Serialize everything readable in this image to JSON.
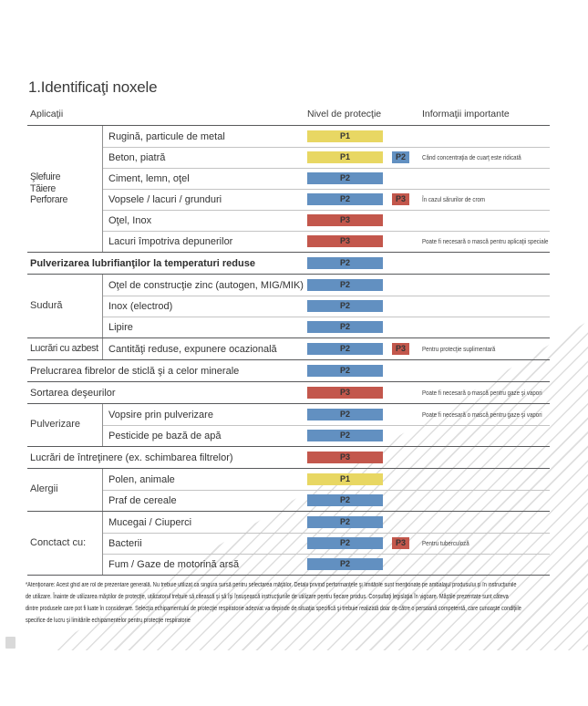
{
  "title": "1.Identificaţi noxele",
  "columns": {
    "applications": "Aplicaţii",
    "protection": "Nivel de protecţie",
    "info": "Informaţii importante"
  },
  "levels": {
    "P1": "#e8d763",
    "P2": "#6290c1",
    "P3": "#c3574c"
  },
  "sections": [
    {
      "label": "Şlefuire\nTăiere\nPerforare",
      "rows": [
        {
          "text": "Rugină, particule de metal",
          "badge": "P1"
        },
        {
          "text": "Beton, piatră",
          "badge": "P1",
          "badge2": "P2",
          "note": "Când concentraţia de cuarţ este ridicată"
        },
        {
          "text": "Ciment, lemn, oţel",
          "badge": "P2"
        },
        {
          "text": "Vopsele / lacuri / grunduri",
          "badge": "P2",
          "badge2": "P3",
          "note": "În cazul sărurilor de crom"
        },
        {
          "text": "Oţel, Inox",
          "badge": "P3"
        },
        {
          "text": "Lacuri împotriva depunerilor",
          "badge": "P3",
          "note": "Poate fi necesară o mască pentru aplicaţii speciale"
        }
      ]
    },
    {
      "label": "",
      "rows": [
        {
          "text": "Pulverizarea lubrifianţilor la temperaturi reduse",
          "bold": true,
          "badge": "P2"
        }
      ]
    },
    {
      "label": "Sudură",
      "rows": [
        {
          "text": "Oţel de construcţie zinc (autogen, MIG/MIK)",
          "badge": "P2"
        },
        {
          "text": "Inox (electrod)",
          "badge": "P2"
        },
        {
          "text": "Lipire",
          "badge": "P2"
        }
      ]
    },
    {
      "label": "Lucrări cu azbest",
      "rows": [
        {
          "text": "Cantităţi reduse, expunere ocazională",
          "badge": "P2",
          "badge2": "P3",
          "note": "Pentru protecţie suplimentară"
        }
      ]
    },
    {
      "label": "",
      "rows": [
        {
          "text": "Prelucrarea fibrelor de sticlă şi a celor minerale",
          "badge": "P2"
        }
      ]
    },
    {
      "label": "",
      "rows": [
        {
          "text": "Sortarea deşeurilor",
          "badge": "P3",
          "note": "Poate fi necesară o mască pentru gaze şi vapori"
        }
      ]
    },
    {
      "label": "Pulverizare",
      "rows": [
        {
          "text": "Vopsire prin pulverizare",
          "badge": "P2",
          "note": "Poate fi necesară o mască pentru gaze şi vapori"
        },
        {
          "text": "Pesticide pe bază de apă",
          "badge": "P2"
        }
      ]
    },
    {
      "label": "",
      "rows": [
        {
          "text": "Lucrări de întreţinere (ex. schimbarea filtrelor)",
          "badge": "P3"
        }
      ]
    },
    {
      "label": "Alergii",
      "rows": [
        {
          "text": "Polen, animale",
          "badge": "P1"
        },
        {
          "text": "Praf de cereale",
          "badge": "P2"
        }
      ]
    },
    {
      "label": "Conctact cu:",
      "rows": [
        {
          "text": "Mucegai / Ciuperci",
          "badge": "P2"
        },
        {
          "text": "Bacterii",
          "badge": "P2",
          "badge2": "P3",
          "note": "Pentru tuberculoză"
        },
        {
          "text": "Fum / Gaze de motorină arsă",
          "badge": "P2"
        }
      ]
    }
  ],
  "footnote_lines": [
    "*Atenţionare: Acest ghid are rol de prezentare generală. Nu trebuie utilizat ca singura sursă pentru selectarea măştilor. Detalii privind performanţele şi limitările sunt menţionate pe ambalajul produsului şi în instrucţiunile",
    "de utilizare. Înainte de utilizarea măştilor de protecţie, utilizatorul trebuie să citească şi să îşi însuşească instrucţiunile de utilizare pentru fiecare produs. Consultaţi legislaţia în vigoare. Măştile prezentate sunt câteva",
    "dintre produsele care pot fi luate în considerare. Selecţia echipamentului de protecţie respiratorie adecvat va depinde de situaţia specifică şi trebuie realizată doar de către o persoană competentă, care cunoaşte condiţiile",
    "specifice de lucru şi limitările echipamentelor pentru protecţie respiratorie"
  ]
}
